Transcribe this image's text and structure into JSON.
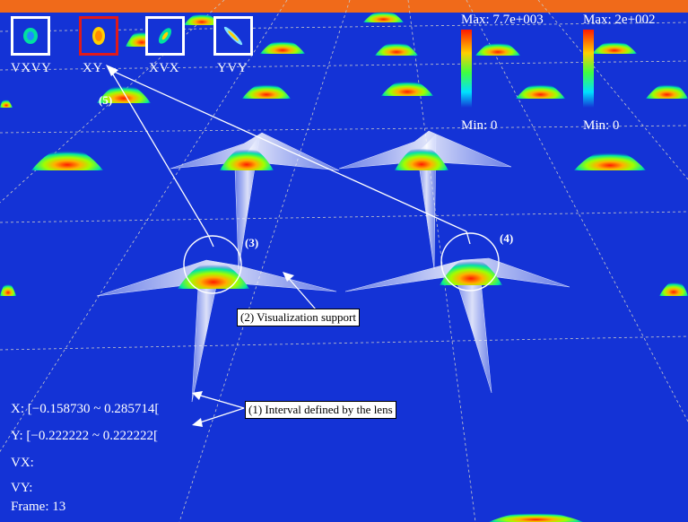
{
  "view_thumbnails": [
    {
      "label": "VXVY",
      "selected": false,
      "icon": "round-blob-icon"
    },
    {
      "label": "XY",
      "selected": true,
      "icon": "oval-blob-icon"
    },
    {
      "label": "XVX",
      "selected": false,
      "icon": "tilted-blob-icon"
    },
    {
      "label": "YVY",
      "selected": false,
      "icon": "diagonal-streak-icon"
    }
  ],
  "colorbars": [
    {
      "max_label": "Max: 7.7e+003",
      "min_label": "Min: 0"
    },
    {
      "max_label": "Max: 2e+002",
      "min_label": "Min: 0"
    }
  ],
  "annotations": {
    "interval": "(1) Interval defined by the lens",
    "visualization_support": "(2) Visualization support",
    "lens_3": "(3)",
    "lens_4": "(4)",
    "selected_view": "(5)"
  },
  "readout": {
    "x": "X:  [−0.158730 ~ 0.285714[",
    "y": "Y:  [−0.222222 ~ 0.222222[",
    "vx": "VX:",
    "vy": "VY:",
    "frame": "Frame: 13"
  },
  "colors": {
    "background": "#1433d6",
    "selected_border": "#e01a1a",
    "thumb_border": "#ffffff",
    "peak_top": "#ff2200",
    "peak_base": "#00e0a0"
  }
}
